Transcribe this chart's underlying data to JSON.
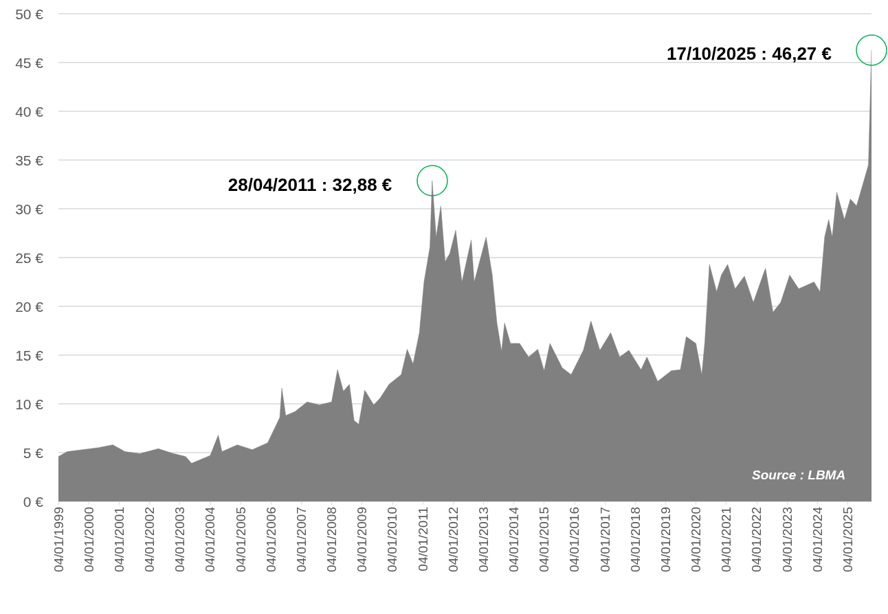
{
  "chart_data": {
    "type": "area",
    "x": [
      "1999-01-04",
      "1999-04-20",
      "1999-10-20",
      "2000-04-20",
      "2000-10-20",
      "2001-03-15",
      "2001-09-10",
      "2002-04-20",
      "2002-10-20",
      "2003-03-15",
      "2003-05-25",
      "2004-01-04",
      "2004-04-10",
      "2004-05-25",
      "2004-11-25",
      "2005-05-25",
      "2005-11-25",
      "2006-04-20",
      "2006-05-15",
      "2006-07-01",
      "2006-10-20",
      "2007-03-15",
      "2007-08-10",
      "2008-01-04",
      "2008-03-15",
      "2008-05-25",
      "2008-08-05",
      "2008-10-01",
      "2008-11-25",
      "2009-02-05",
      "2009-05-25",
      "2009-08-10",
      "2009-11-25",
      "2010-04-20",
      "2010-07-01",
      "2010-09-10",
      "2010-11-25",
      "2011-01-20",
      "2011-04-01",
      "2011-04-28",
      "2011-06-15",
      "2011-08-10",
      "2011-10-01",
      "2011-11-25",
      "2012-02-05",
      "2012-04-20",
      "2012-08-10",
      "2012-09-15",
      "2013-02-05",
      "2013-04-20",
      "2013-06-15",
      "2013-08-10",
      "2013-09-15",
      "2013-11-25",
      "2014-03-15",
      "2014-07-01",
      "2014-10-20",
      "2015-01-04",
      "2015-03-15",
      "2015-08-10",
      "2015-11-25",
      "2016-04-20",
      "2016-07-20",
      "2016-11-05",
      "2017-03-15",
      "2017-07-01",
      "2017-10-20",
      "2018-03-15",
      "2018-05-25",
      "2018-10-01",
      "2019-03-15",
      "2019-07-01",
      "2019-09-10",
      "2020-01-04",
      "2020-03-15",
      "2020-04-20",
      "2020-06-15",
      "2020-09-10",
      "2020-11-05",
      "2021-01-20",
      "2021-04-20",
      "2021-08-10",
      "2021-11-25",
      "2022-04-20",
      "2022-07-20",
      "2022-10-20",
      "2023-02-05",
      "2023-05-25",
      "2023-11-25",
      "2024-02-05",
      "2024-04-01",
      "2024-05-20",
      "2024-07-01",
      "2024-08-25",
      "2024-11-25",
      "2025-02-05",
      "2025-04-20",
      "2025-07-01",
      "2025-09-10",
      "2025-10-17"
    ],
    "values": [
      4.6,
      5.1,
      5.3,
      5.5,
      5.8,
      5.1,
      4.9,
      5.4,
      4.9,
      4.6,
      3.9,
      4.7,
      6.8,
      5.1,
      5.8,
      5.3,
      6.0,
      8.6,
      11.6,
      8.8,
      9.2,
      10.2,
      9.9,
      10.2,
      13.5,
      11.3,
      12.0,
      8.3,
      7.9,
      11.4,
      9.9,
      10.6,
      12.0,
      13.0,
      15.6,
      14.1,
      17.3,
      22.5,
      26.1,
      32.88,
      27.1,
      30.3,
      24.6,
      25.4,
      27.8,
      22.5,
      26.8,
      22.5,
      27.1,
      23.2,
      18.3,
      15.4,
      18.3,
      16.2,
      16.2,
      14.8,
      15.6,
      13.4,
      16.2,
      13.7,
      13.0,
      15.5,
      18.5,
      15.5,
      17.3,
      14.8,
      15.5,
      13.5,
      14.8,
      12.3,
      13.4,
      13.5,
      16.9,
      16.2,
      13.0,
      16.3,
      24.3,
      21.5,
      23.2,
      24.3,
      21.8,
      23.1,
      20.4,
      23.9,
      19.4,
      20.4,
      23.2,
      21.8,
      22.5,
      21.5,
      27.1,
      28.9,
      27.1,
      31.7,
      28.9,
      31.0,
      30.3,
      32.4,
      34.5,
      46.27
    ],
    "color": "#808080",
    "xlim": [
      "1999-01-04",
      "2025-10-17"
    ],
    "xticks": [
      {
        "value": "1999-01-04",
        "label": "04/01/1999"
      },
      {
        "value": "2000-01-04",
        "label": "04/01/2000"
      },
      {
        "value": "2001-01-04",
        "label": "04/01/2001"
      },
      {
        "value": "2002-01-04",
        "label": "04/01/2002"
      },
      {
        "value": "2003-01-04",
        "label": "04/01/2003"
      },
      {
        "value": "2004-01-04",
        "label": "04/01/2004"
      },
      {
        "value": "2005-01-04",
        "label": "04/01/2005"
      },
      {
        "value": "2006-01-04",
        "label": "04/01/2006"
      },
      {
        "value": "2007-01-04",
        "label": "04/01/2007"
      },
      {
        "value": "2008-01-04",
        "label": "04/01/2008"
      },
      {
        "value": "2009-01-04",
        "label": "04/01/2009"
      },
      {
        "value": "2010-01-04",
        "label": "04/01/2010"
      },
      {
        "value": "2011-01-04",
        "label": "04/01/2011"
      },
      {
        "value": "2012-01-04",
        "label": "04/01/2012"
      },
      {
        "value": "2013-01-04",
        "label": "04/01/2013"
      },
      {
        "value": "2014-01-04",
        "label": "04/01/2014"
      },
      {
        "value": "2015-01-04",
        "label": "04/01/2015"
      },
      {
        "value": "2016-01-04",
        "label": "04/01/2016"
      },
      {
        "value": "2017-01-04",
        "label": "04/01/2017"
      },
      {
        "value": "2018-01-04",
        "label": "04/01/2018"
      },
      {
        "value": "2019-01-04",
        "label": "04/01/2019"
      },
      {
        "value": "2020-01-04",
        "label": "04/01/2020"
      },
      {
        "value": "2021-01-04",
        "label": "04/01/2021"
      },
      {
        "value": "2022-01-04",
        "label": "04/01/2022"
      },
      {
        "value": "2023-01-04",
        "label": "04/01/2023"
      },
      {
        "value": "2024-01-04",
        "label": "04/01/2024"
      },
      {
        "value": "2025-01-04",
        "label": "04/01/2025"
      }
    ],
    "ylim": [
      0,
      50
    ],
    "yticks": [
      {
        "value": 0,
        "label": "0 €"
      },
      {
        "value": 5,
        "label": "5 €"
      },
      {
        "value": 10,
        "label": "10 €"
      },
      {
        "value": 15,
        "label": "15 €"
      },
      {
        "value": 20,
        "label": "20 €"
      },
      {
        "value": 25,
        "label": "25 €"
      },
      {
        "value": 30,
        "label": "30 €"
      },
      {
        "value": 35,
        "label": "35 €"
      },
      {
        "value": 40,
        "label": "40 €"
      },
      {
        "value": 45,
        "label": "45 €"
      },
      {
        "value": 50,
        "label": "50 €"
      }
    ],
    "grid": "y",
    "annotations": [
      {
        "text": "28/04/2011 : 32,88 €",
        "x": "2011-04-28",
        "y": 32.88
      },
      {
        "text": "17/10/2025 : 46,27 €",
        "x": "2025-10-17",
        "y": 46.27
      },
      "Source : LBMA"
    ]
  }
}
